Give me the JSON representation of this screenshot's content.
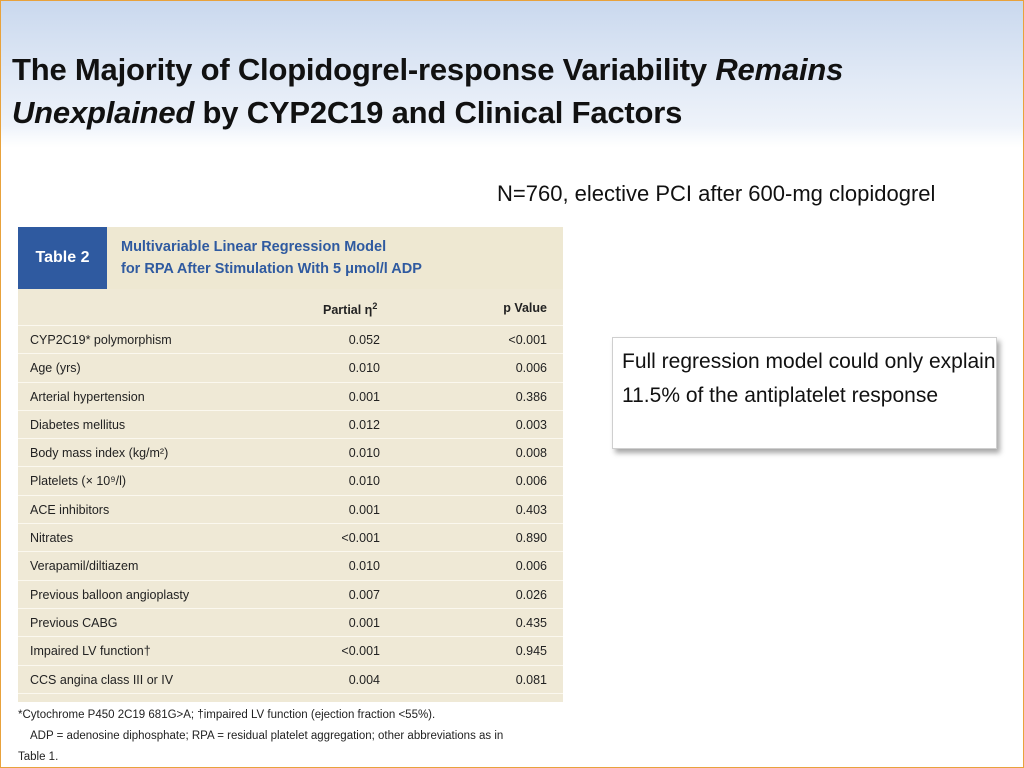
{
  "title": {
    "line1_normal": "The Majority of Clopidogrel-response Variability ",
    "line1_italic": "Remains",
    "line2_italic": "Unexplained",
    "line2_normal": " by CYP2C19 and Clinical Factors"
  },
  "subtitle": "N=760, elective PCI after 600-mg clopidogrel",
  "table": {
    "badge": "Table 2",
    "title_line1": "Multivariable Linear Regression Model",
    "title_line2": "for RPA After Stimulation With 5 μmol/l ADP",
    "col_partial": "Partial η",
    "col_partial_sup": "2",
    "col_p": "p Value",
    "rows": [
      {
        "label": "CYP2C19* polymorphism",
        "eta": "0.052",
        "p": "<0.001"
      },
      {
        "label": "Age (yrs)",
        "eta": "0.010",
        "p": "0.006"
      },
      {
        "label": "Arterial hypertension",
        "eta": "0.001",
        "p": "0.386"
      },
      {
        "label": "Diabetes mellitus",
        "eta": "0.012",
        "p": "0.003"
      },
      {
        "label": "Body mass index (kg/m²)",
        "eta": "0.010",
        "p": "0.008"
      },
      {
        "label": "Platelets (× 10⁹/l)",
        "eta": "0.010",
        "p": "0.006"
      },
      {
        "label": "ACE inhibitors",
        "eta": "0.001",
        "p": "0.403"
      },
      {
        "label": "Nitrates",
        "eta": "<0.001",
        "p": "0.890"
      },
      {
        "label": "Verapamil/diltiazem",
        "eta": "0.010",
        "p": "0.006"
      },
      {
        "label": "Previous balloon angioplasty",
        "eta": "0.007",
        "p": "0.026"
      },
      {
        "label": "Previous CABG",
        "eta": "0.001",
        "p": "0.435"
      },
      {
        "label": "Impaired LV function†",
        "eta": "<0.001",
        "p": "0.945"
      },
      {
        "label": "CCS angina class III or IV",
        "eta": "0.004",
        "p": "0.081"
      }
    ]
  },
  "footnotes": {
    "line1": "*Cytochrome P450 2C19 681G>A; †impaired LV function (ejection fraction <55%).",
    "line2": "ADP = adenosine diphosphate; RPA = residual platelet aggregation; other abbreviations as in",
    "line3": "Table 1."
  },
  "callout": {
    "text": "Full regression model could only explain 11.5% of the antiplatelet response"
  },
  "colors": {
    "header_gradient_top": "#c9d8ee",
    "table_badge": "#2f5aa0",
    "table_title": "#2f5aa0",
    "table_background": "#efe9d6",
    "slide_border": "#e8a23c"
  }
}
